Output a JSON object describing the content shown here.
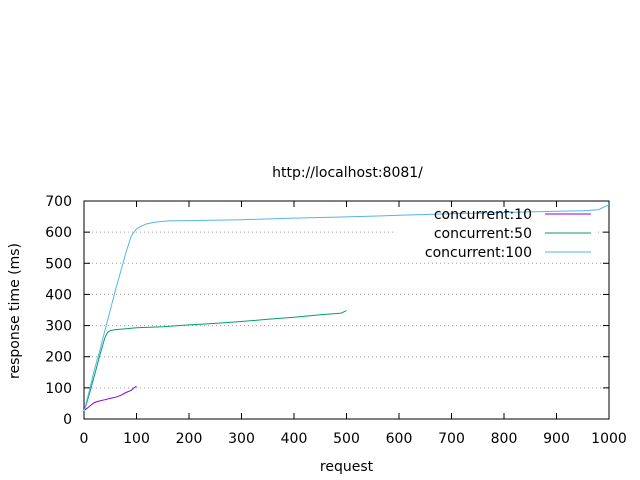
{
  "chart_data": {
    "type": "line",
    "title": "http://localhost:8081/",
    "xlabel": "request",
    "ylabel": "response time (ms)",
    "xlim": [
      0,
      1000
    ],
    "ylim": [
      0,
      700
    ],
    "xticks": [
      0,
      100,
      200,
      300,
      400,
      500,
      600,
      700,
      800,
      900,
      1000
    ],
    "yticks": [
      0,
      100,
      200,
      300,
      400,
      500,
      600,
      700
    ],
    "grid": "horizontal dotted",
    "legend_position": "top-right",
    "series": [
      {
        "name": "concurrent:10",
        "color": "#9400d3",
        "x": [
          0,
          5,
          10,
          15,
          20,
          30,
          40,
          50,
          60,
          70,
          80,
          90,
          95,
          100
        ],
        "y": [
          28,
          33,
          40,
          47,
          53,
          58,
          62,
          66,
          70,
          76,
          85,
          92,
          100,
          105
        ]
      },
      {
        "name": "concurrent:50",
        "color": "#009e73",
        "x": [
          0,
          5,
          10,
          20,
          30,
          40,
          45,
          50,
          60,
          80,
          100,
          150,
          200,
          250,
          300,
          350,
          400,
          450,
          490,
          500
        ],
        "y": [
          25,
          50,
          80,
          140,
          205,
          262,
          278,
          284,
          287,
          290,
          293,
          296,
          302,
          307,
          313,
          320,
          327,
          335,
          340,
          348
        ]
      },
      {
        "name": "concurrent:100",
        "color": "#56b4e9",
        "x": [
          0,
          10,
          20,
          30,
          40,
          50,
          60,
          70,
          80,
          90,
          100,
          110,
          120,
          140,
          160,
          200,
          300,
          400,
          500,
          600,
          700,
          800,
          900,
          950,
          980,
          1000
        ],
        "y": [
          25,
          90,
          160,
          220,
          285,
          350,
          415,
          475,
          535,
          588,
          610,
          620,
          627,
          633,
          636,
          637,
          640,
          645,
          649,
          654,
          659,
          663,
          667,
          669,
          672,
          688
        ]
      }
    ]
  }
}
